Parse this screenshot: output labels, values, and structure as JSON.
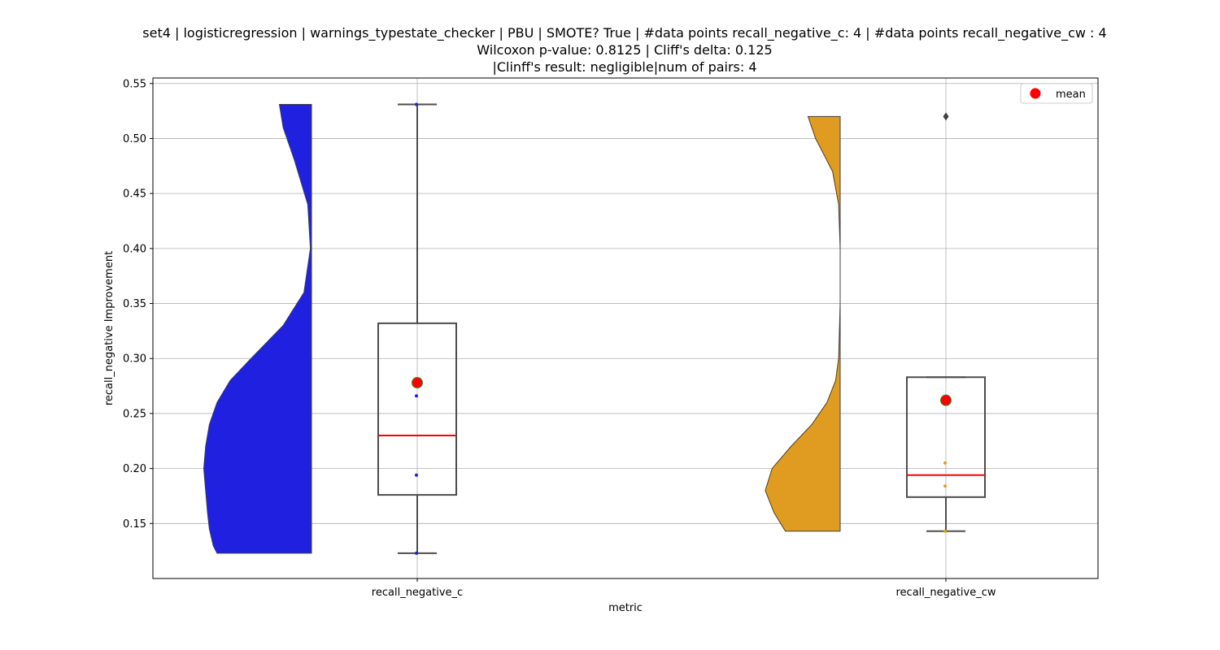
{
  "chart_data": {
    "type": "violin-box",
    "title_lines": [
      "set4 | logisticregression | warnings_typestate_checker | PBU | SMOTE? True | #data points recall_negative_c: 4 | #data points recall_negative_cw : 4",
      "Wilcoxon p-value: 0.8125 | Cliff's delta: 0.125",
      "|Clinff's result: negligible|num of pairs: 4"
    ],
    "xlabel": "metric",
    "ylabel": "recall_negative Improvement",
    "ylim": [
      0.1,
      0.555
    ],
    "yticks": [
      0.15,
      0.2,
      0.25,
      0.3,
      0.35,
      0.4,
      0.45,
      0.5,
      0.55
    ],
    "ytick_labels": [
      "0.15",
      "0.20",
      "0.25",
      "0.30",
      "0.35",
      "0.40",
      "0.45",
      "0.50",
      "0.55"
    ],
    "categories": [
      "recall_negative_c",
      "recall_negative_cw"
    ],
    "grid": true,
    "legend": {
      "position": "top-right",
      "entries": [
        {
          "label": "mean",
          "color": "#ff0000"
        }
      ]
    },
    "series": [
      {
        "category": "recall_negative_c",
        "color": "#2020e0",
        "points": [
          0.123,
          0.194,
          0.266,
          0.531
        ],
        "box": {
          "min": 0.123,
          "q1": 0.176,
          "median": 0.23,
          "q3": 0.332,
          "max": 0.531
        },
        "mean": 0.278,
        "outliers": [],
        "violin_profile": [
          [
            0.123,
            0.25
          ],
          [
            0.13,
            0.26
          ],
          [
            0.145,
            0.27
          ],
          [
            0.16,
            0.275
          ],
          [
            0.18,
            0.28
          ],
          [
            0.2,
            0.285
          ],
          [
            0.22,
            0.28
          ],
          [
            0.24,
            0.27
          ],
          [
            0.26,
            0.25
          ],
          [
            0.28,
            0.215
          ],
          [
            0.3,
            0.16
          ],
          [
            0.33,
            0.075
          ],
          [
            0.36,
            0.02
          ],
          [
            0.4,
            0.003
          ],
          [
            0.44,
            0.01
          ],
          [
            0.48,
            0.045
          ],
          [
            0.51,
            0.075
          ],
          [
            0.531,
            0.085
          ]
        ]
      },
      {
        "category": "recall_negative_cw",
        "color": "#e09c20",
        "points": [
          0.143,
          0.184,
          0.205,
          0.52
        ],
        "box": {
          "min": 0.143,
          "q1": 0.174,
          "median": 0.194,
          "q3": 0.283,
          "max": 0.283
        },
        "mean": 0.262,
        "outliers": [
          0.52
        ],
        "violin_profile": [
          [
            0.143,
            0.145
          ],
          [
            0.16,
            0.175
          ],
          [
            0.18,
            0.198
          ],
          [
            0.2,
            0.18
          ],
          [
            0.22,
            0.13
          ],
          [
            0.24,
            0.075
          ],
          [
            0.26,
            0.035
          ],
          [
            0.28,
            0.012
          ],
          [
            0.3,
            0.004
          ],
          [
            0.35,
            0.0
          ],
          [
            0.4,
            0.0
          ],
          [
            0.44,
            0.004
          ],
          [
            0.47,
            0.02
          ],
          [
            0.5,
            0.065
          ],
          [
            0.52,
            0.085
          ]
        ]
      }
    ]
  }
}
